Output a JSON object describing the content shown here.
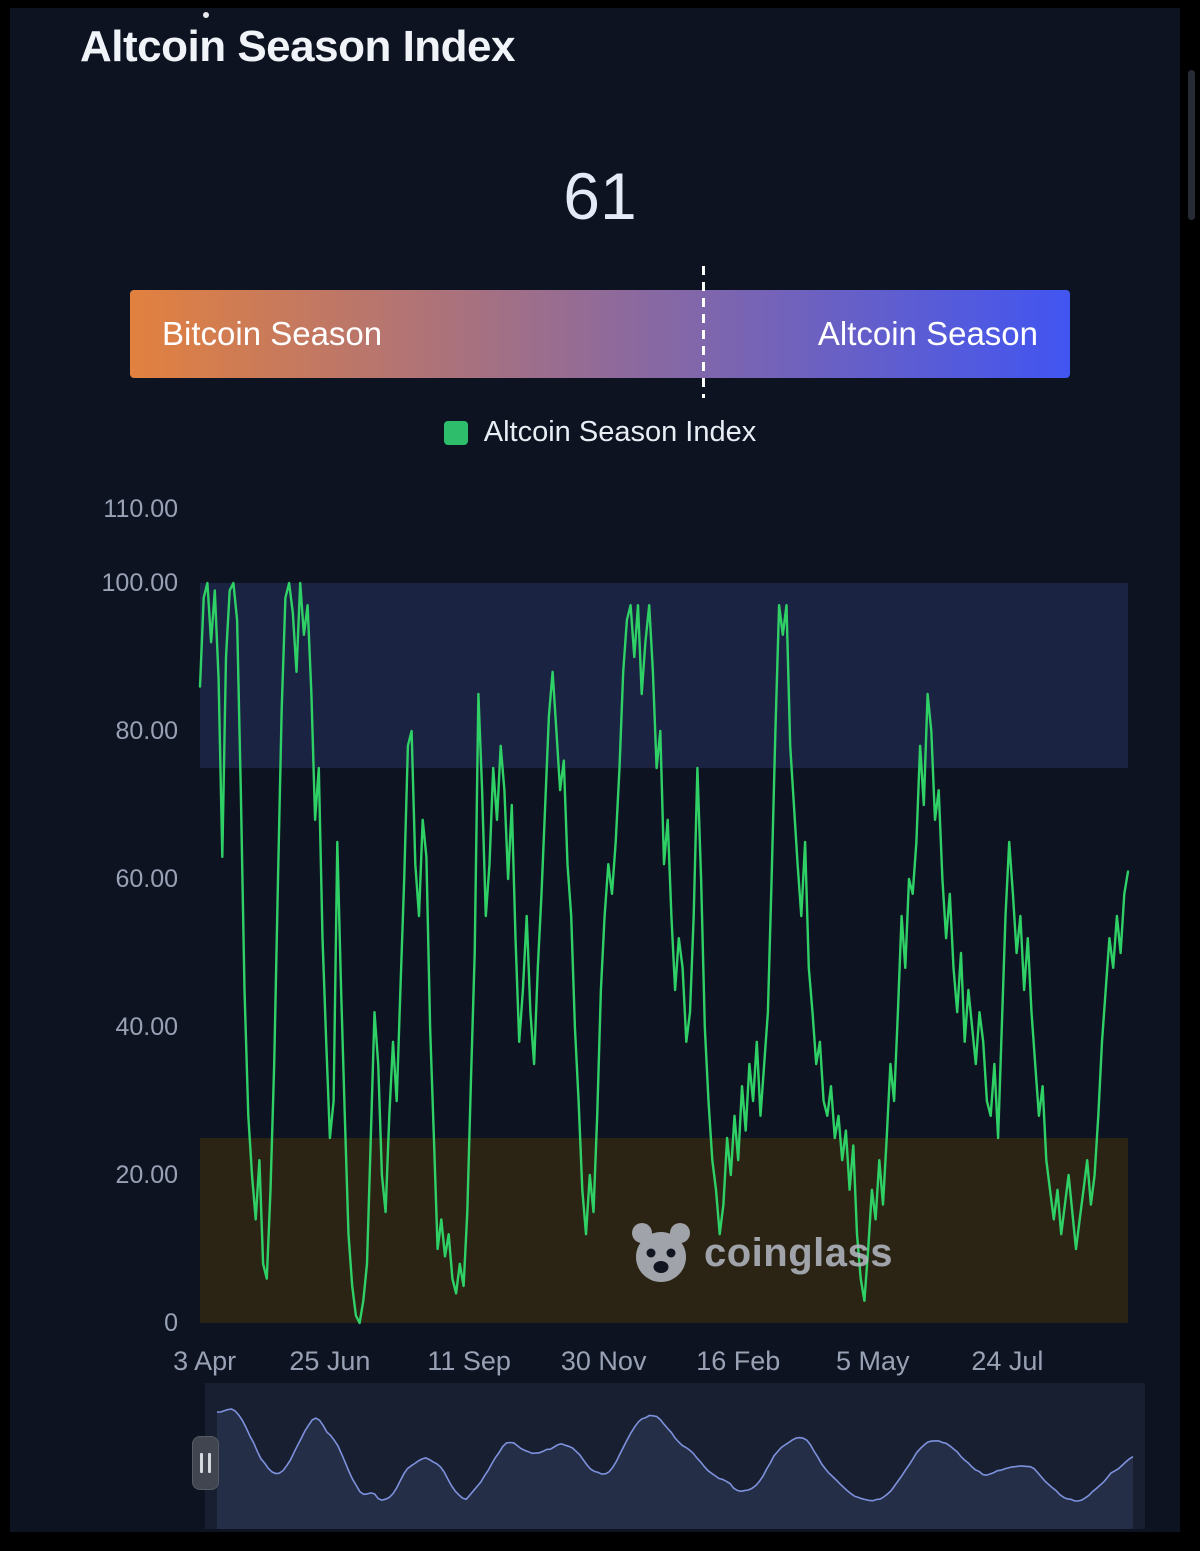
{
  "header": {
    "title": "Altcoin Season Index"
  },
  "gauge": {
    "value": 61,
    "max": 100,
    "left_label": "Bitcoin Season",
    "right_label": "Altcoin Season",
    "gradient_start": "#e2813f",
    "gradient_end": "#4155f1",
    "marker_color": "#ffffff"
  },
  "legend": {
    "label": "Altcoin Season Index",
    "swatch_color": "#2ebd6b"
  },
  "watermark": {
    "text": "coinglass",
    "color": "#b5bac4"
  },
  "navigator": {
    "line_color": "#7e91dd",
    "fill_color": "rgba(126,145,221,0.13)",
    "background": "#171f30"
  },
  "chart_data": {
    "type": "line",
    "title": "Altcoin Season Index",
    "series_name": "Altcoin Season Index",
    "line_color": "#2fd166",
    "ylim": [
      0,
      110
    ],
    "grid": false,
    "legend_position": "top-center",
    "y_ticks": [
      {
        "value": 110,
        "label": "110.00"
      },
      {
        "value": 100,
        "label": "100.00"
      },
      {
        "value": 80,
        "label": "80.00"
      },
      {
        "value": 60,
        "label": "60.00"
      },
      {
        "value": 40,
        "label": "40.00"
      },
      {
        "value": 20,
        "label": "20.00"
      },
      {
        "value": 0,
        "label": "0"
      }
    ],
    "x_ticks": [
      {
        "label": "3 Apr",
        "f": 0.005
      },
      {
        "label": "25 Jun",
        "f": 0.14
      },
      {
        "label": "11 Sep",
        "f": 0.29
      },
      {
        "label": "30 Nov",
        "f": 0.435
      },
      {
        "label": "16 Feb",
        "f": 0.58
      },
      {
        "label": "5 May",
        "f": 0.725
      },
      {
        "label": "24 Jul",
        "f": 0.87
      }
    ],
    "plot_bands": [
      {
        "from": 75,
        "to": 100,
        "color": "#1a2342"
      },
      {
        "from": 0,
        "to": 25,
        "color": "#2b2415"
      }
    ],
    "values": [
      86,
      98,
      100,
      92,
      99,
      87,
      63,
      90,
      99,
      100,
      95,
      72,
      45,
      28,
      20,
      14,
      22,
      8,
      6,
      18,
      35,
      60,
      83,
      98,
      100,
      96,
      88,
      100,
      93,
      97,
      85,
      68,
      75,
      52,
      38,
      25,
      30,
      65,
      45,
      28,
      12,
      5,
      1,
      0,
      3,
      8,
      25,
      42,
      35,
      20,
      15,
      28,
      38,
      30,
      45,
      60,
      78,
      80,
      62,
      55,
      68,
      63,
      40,
      25,
      10,
      14,
      9,
      12,
      6,
      4,
      8,
      5,
      15,
      33,
      50,
      85,
      72,
      55,
      62,
      75,
      68,
      78,
      72,
      60,
      70,
      52,
      38,
      45,
      55,
      42,
      35,
      48,
      58,
      70,
      82,
      88,
      80,
      72,
      76,
      62,
      55,
      40,
      30,
      18,
      12,
      20,
      15,
      28,
      45,
      55,
      62,
      58,
      65,
      75,
      88,
      95,
      97,
      90,
      97,
      85,
      92,
      97,
      88,
      75,
      80,
      62,
      68,
      55,
      45,
      52,
      48,
      38,
      42,
      55,
      75,
      60,
      40,
      30,
      22,
      18,
      12,
      16,
      25,
      20,
      28,
      22,
      32,
      26,
      35,
      30,
      38,
      28,
      35,
      42,
      60,
      80,
      97,
      93,
      97,
      78,
      70,
      62,
      55,
      65,
      48,
      42,
      35,
      38,
      30,
      28,
      32,
      25,
      28,
      22,
      26,
      18,
      24,
      12,
      6,
      3,
      10,
      18,
      14,
      22,
      16,
      25,
      35,
      30,
      42,
      55,
      48,
      60,
      58,
      65,
      78,
      70,
      85,
      80,
      68,
      72,
      60,
      52,
      58,
      48,
      42,
      50,
      38,
      45,
      40,
      35,
      42,
      38,
      30,
      28,
      35,
      25,
      40,
      55,
      65,
      58,
      50,
      55,
      45,
      52,
      42,
      35,
      28,
      32,
      22,
      18,
      14,
      18,
      12,
      16,
      20,
      15,
      10,
      14,
      18,
      22,
      16,
      20,
      28,
      38,
      45,
      52,
      48,
      55,
      50,
      58,
      61
    ]
  }
}
